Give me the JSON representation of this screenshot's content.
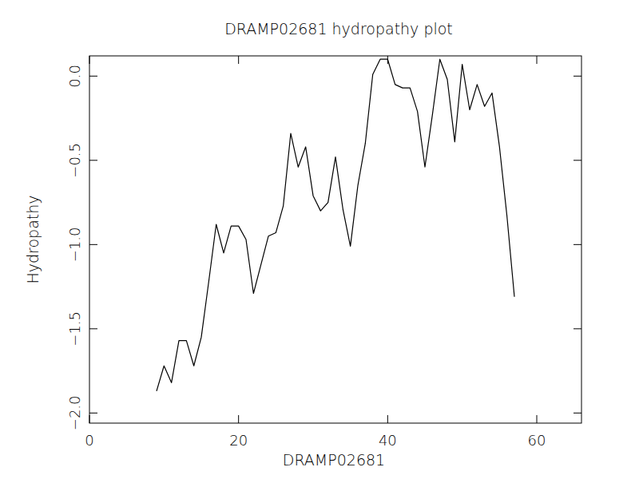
{
  "chart_data": {
    "type": "line",
    "title": "DRAMP02681 hydropathy plot",
    "x_label": "DRAMP02681",
    "y_label": "Hydropathy",
    "x": [
      9,
      10,
      11,
      12,
      13,
      14,
      15,
      16,
      17,
      18,
      19,
      20,
      21,
      22,
      23,
      24,
      25,
      26,
      27,
      28,
      29,
      30,
      31,
      32,
      33,
      34,
      35,
      36,
      37,
      38,
      39,
      40,
      41,
      42,
      43,
      44,
      45,
      46,
      47,
      48,
      49,
      50,
      51,
      52,
      53,
      54,
      55,
      56,
      57
    ],
    "series": [
      {
        "name": "Hydropathy",
        "color": "#000000",
        "values": [
          -1.87,
          -1.72,
          -1.82,
          -1.57,
          -1.57,
          -1.72,
          -1.55,
          -1.22,
          -0.88,
          -1.05,
          -0.89,
          -0.89,
          -0.97,
          -1.29,
          -1.12,
          -0.95,
          -0.93,
          -0.77,
          -0.34,
          -0.54,
          -0.42,
          -0.71,
          -0.8,
          -0.75,
          -0.48,
          -0.79,
          -1.01,
          -0.65,
          -0.4,
          0.01,
          0.1,
          0.1,
          -0.05,
          -0.07,
          -0.07,
          -0.21,
          -0.54,
          -0.23,
          0.1,
          -0.02,
          -0.39,
          0.07,
          -0.2,
          -0.05,
          -0.18,
          -0.1,
          -0.42,
          -0.83,
          -1.31
        ]
      }
    ],
    "xlim": [
      0,
      66
    ],
    "xticks": [
      0,
      20,
      40,
      60
    ],
    "ylim": [
      -2.06,
      0.12
    ],
    "yticks": [
      {
        "value": 0,
        "label": "0.0"
      },
      {
        "value": -0.5,
        "label": "−0.5"
      },
      {
        "value": -1,
        "label": "−1.0"
      },
      {
        "value": -1.5,
        "label": "−1.5"
      },
      {
        "value": -2,
        "label": "−2.0"
      }
    ],
    "grid": false
  }
}
